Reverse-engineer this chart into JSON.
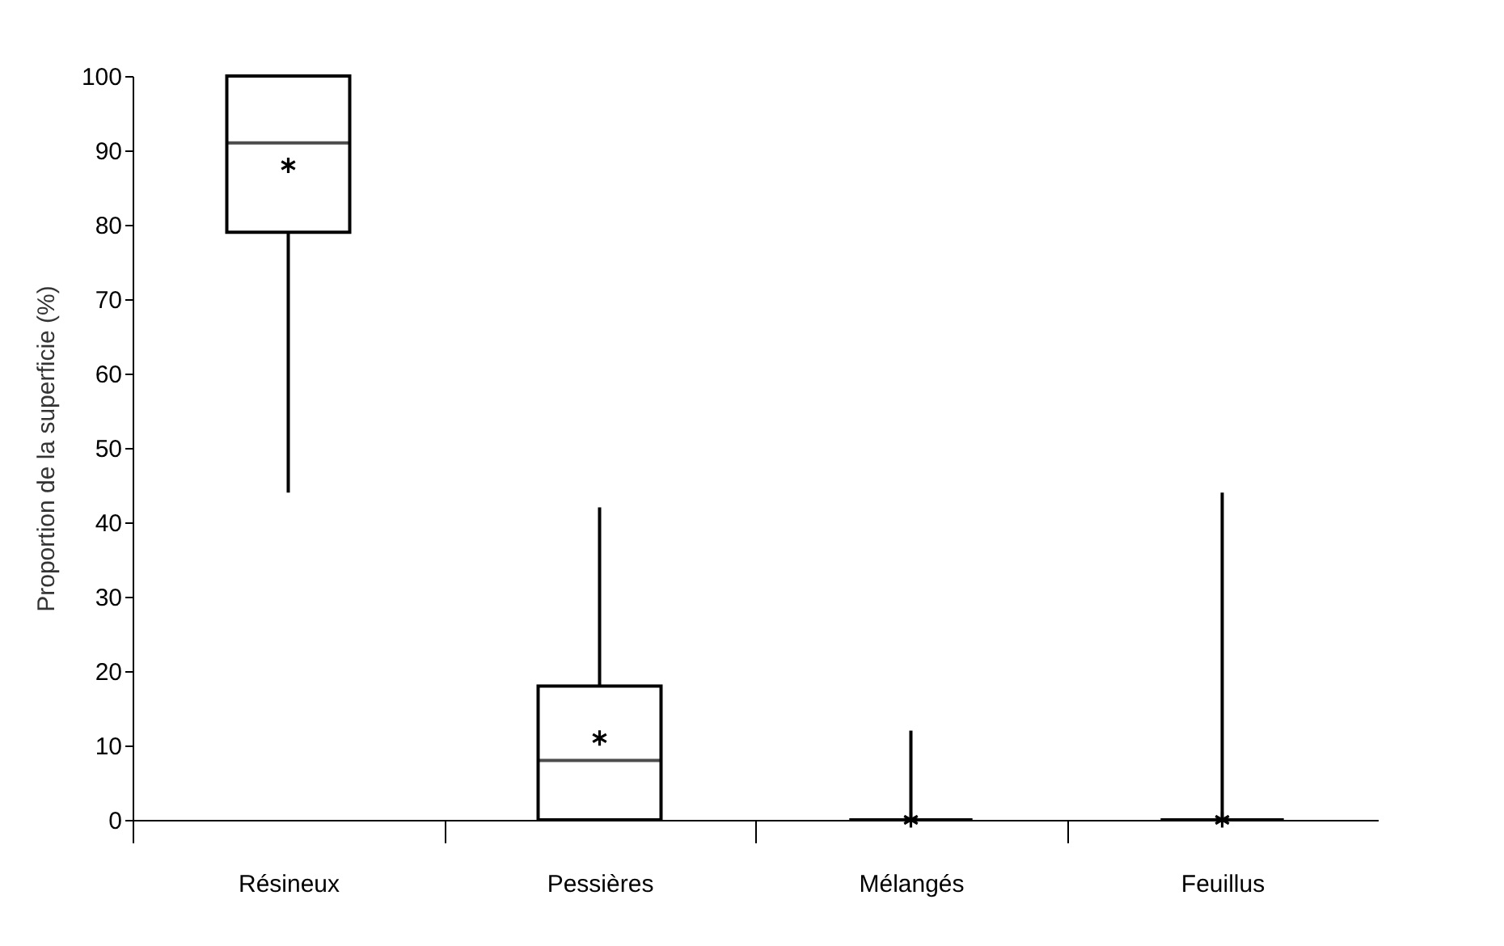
{
  "chart_data": {
    "type": "box",
    "ylabel": "Proportion de la superficie (%)",
    "categories": [
      "Résineux",
      "Pessières",
      "Mélangés",
      "Feuillus"
    ],
    "boxes": [
      {
        "low": 44,
        "q1": 79,
        "median": 91,
        "q3": 100,
        "high": 100,
        "mean": 88
      },
      {
        "low": 0,
        "q1": 0,
        "median": 8,
        "q3": 18,
        "high": 42,
        "mean": 11
      },
      {
        "low": 0,
        "q1": 0,
        "median": 0,
        "q3": 0,
        "high": 12,
        "mean": 0
      },
      {
        "low": 0,
        "q1": 0,
        "median": 0,
        "q3": 0,
        "high": 44,
        "mean": 0
      }
    ],
    "ylim": [
      0,
      100
    ],
    "yticks": [
      0,
      10,
      20,
      30,
      40,
      50,
      60,
      70,
      80,
      90,
      100
    ],
    "grid": false
  }
}
